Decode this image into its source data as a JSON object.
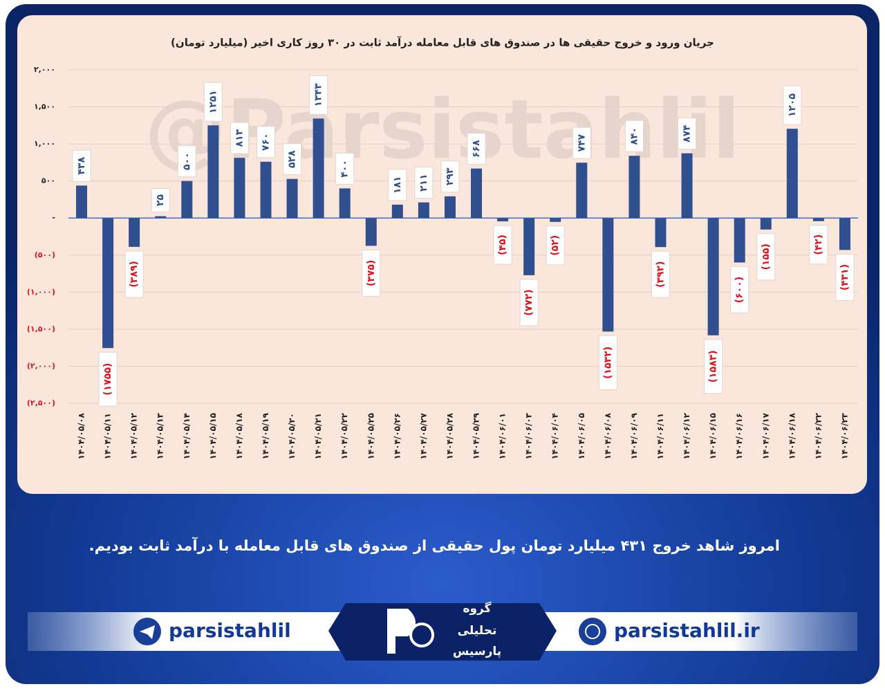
{
  "chart_data": {
    "type": "bar",
    "title": "جریان ورود و خروج حقیقی ها در صندوق های قابل معامله درآمد ثابت در ۳۰ روز کاری اخیر (میلیارد تومان)",
    "categories": [
      "۱۴۰۴/۰۵/۰۸",
      "۱۴۰۴/۰۵/۱۱",
      "۱۴۰۴/۰۵/۱۲",
      "۱۴۰۴/۰۵/۱۳",
      "۱۴۰۴/۰۵/۱۴",
      "۱۴۰۴/۰۵/۱۵",
      "۱۴۰۴/۰۵/۱۸",
      "۱۴۰۴/۰۵/۱۹",
      "۱۴۰۴/۰۵/۲۰",
      "۱۴۰۴/۰۵/۲۱",
      "۱۴۰۴/۰۵/۲۲",
      "۱۴۰۴/۰۵/۲۵",
      "۱۴۰۴/۰۵/۲۶",
      "۱۴۰۴/۰۵/۲۷",
      "۱۴۰۴/۰۵/۲۸",
      "۱۴۰۴/۰۵/۲۹",
      "۱۴۰۴/۰۶/۰۱",
      "۱۴۰۴/۰۶/۰۳",
      "۱۴۰۴/۰۶/۰۴",
      "۱۴۰۴/۰۶/۰۵",
      "۱۴۰۴/۰۶/۰۸",
      "۱۴۰۴/۰۶/۰۹",
      "۱۴۰۴/۰۶/۱۱",
      "۱۴۰۴/۰۶/۱۲",
      "۱۴۰۴/۰۶/۱۵",
      "۱۴۰۴/۰۶/۱۶",
      "۱۴۰۴/۰۶/۱۷",
      "۱۴۰۴/۰۶/۱۸",
      "۱۴۰۴/۰۶/۲۲",
      "۱۴۰۴/۰۶/۲۳"
    ],
    "values": [
      438,
      -1755,
      -389,
      25,
      500,
      1251,
      813,
      760,
      528,
      1343,
      400,
      -375,
      181,
      211,
      293,
      668,
      -45,
      -772,
      -52,
      747,
      -1532,
      840,
      -392,
      874,
      -1583,
      -600,
      -155,
      1205,
      -42,
      -431
    ],
    "value_labels": [
      "۴۳۸",
      "(۱۷۵۵)",
      "(۳۸۹)",
      "۲۵",
      "۵۰۰",
      "۱۲۵۱",
      "۸۱۳",
      "۷۶۰",
      "۵۲۸",
      "۱۳۴۳",
      "۴۰۰",
      "(۳۷۵)",
      "۱۸۱",
      "۲۱۱",
      "۲۹۳",
      "۶۶۸",
      "(۴۵)",
      "(۷۷۲)",
      "(۵۲)",
      "۷۴۷",
      "(۱۵۳۲)",
      "۸۴۰",
      "(۳۹۲)",
      "۸۷۴",
      "(۱۵۸۳)",
      "(۶۰۰)",
      "(۱۵۵)",
      "۱۲۰۵",
      "(۴۲)",
      "(۴۳۱)"
    ],
    "color": "#2f4f8f",
    "negative_label_color": "#e0141e",
    "positive_label_color": "#2f4f8f",
    "ylim": [
      -2500,
      2000
    ],
    "yticks": [
      {
        "value": -2500,
        "label": "(۲,۵۰۰)"
      },
      {
        "value": -2000,
        "label": "(۲,۰۰۰)"
      },
      {
        "value": -1500,
        "label": "(۱,۵۰۰)"
      },
      {
        "value": -1000,
        "label": "(۱,۰۰۰)"
      },
      {
        "value": -500,
        "label": "(۵۰۰)"
      },
      {
        "value": 0,
        "label": "-"
      },
      {
        "value": 500,
        "label": "۵۰۰"
      },
      {
        "value": 1000,
        "label": "۱,۰۰۰"
      },
      {
        "value": 1500,
        "label": "۱,۵۰۰"
      },
      {
        "value": 2000,
        "label": "۲,۰۰۰"
      }
    ],
    "grid": true
  },
  "watermark": "@Parsistahlil",
  "caption": "امروز شاهد خروج ۴۳۱ میلیارد تومان پول حقیقی از صندوق های قابل معامله با درآمد ثابت بودیم.",
  "footer": {
    "telegram": "parsistahlil",
    "website": "parsistahlil.ir",
    "logo": [
      "گروه",
      "تحلیلی",
      "پارسیس"
    ]
  }
}
